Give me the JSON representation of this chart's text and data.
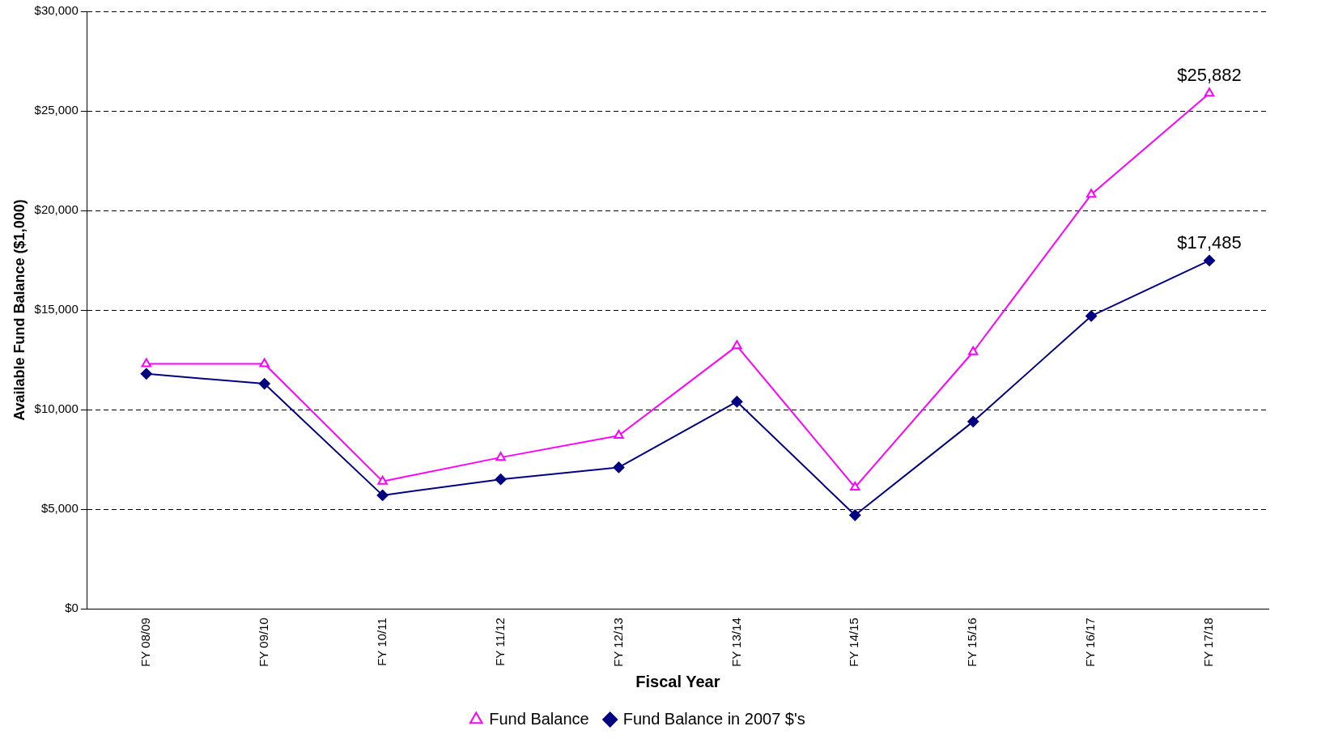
{
  "chart_data": {
    "type": "line",
    "xlabel": "Fiscal Year",
    "ylabel": "Available Fund Balance ($1,000)",
    "categories": [
      "FY 08/09",
      "FY 09/10",
      "FY 10/11",
      "FY 11/12",
      "FY 12/13",
      "FY 13/14",
      "FY 14/15",
      "FY 15/16",
      "FY 16/17",
      "FY 17/18"
    ],
    "series": [
      {
        "name": "Fund Balance",
        "color": "#ff00ff",
        "marker": "triangle",
        "values": [
          12300,
          12300,
          6400,
          7600,
          8700,
          13200,
          6100,
          12900,
          20800,
          25882
        ],
        "value_labels": [
          null,
          null,
          null,
          null,
          null,
          null,
          null,
          null,
          null,
          "$25,882"
        ]
      },
      {
        "name": "Fund Balance in 2007 $'s",
        "color": "#000080",
        "marker": "diamond",
        "values": [
          11800,
          11300,
          5700,
          6500,
          7100,
          10400,
          4700,
          9400,
          14700,
          17485
        ],
        "value_labels": [
          null,
          null,
          null,
          null,
          null,
          null,
          null,
          null,
          null,
          "$17,485"
        ]
      }
    ],
    "ylim": [
      0,
      30000
    ],
    "yticks": [
      {
        "value": 0,
        "label": "$0"
      },
      {
        "value": 5000,
        "label": "$5,000"
      },
      {
        "value": 10000,
        "label": "$10,000"
      },
      {
        "value": 15000,
        "label": "$15,000"
      },
      {
        "value": 20000,
        "label": "$20,000"
      },
      {
        "value": 25000,
        "label": "$25,000"
      },
      {
        "value": 30000,
        "label": "$30,000"
      }
    ],
    "grid": "y",
    "legend": "bottom",
    "line_style": "solid"
  }
}
